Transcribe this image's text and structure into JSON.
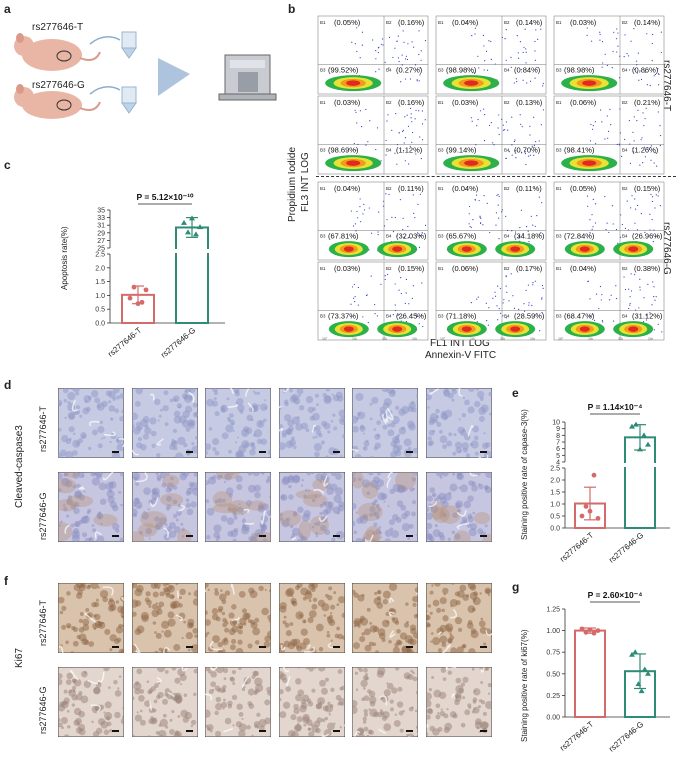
{
  "panels": {
    "a": "a",
    "b": "b",
    "c": "c",
    "d": "d",
    "e": "e",
    "f": "f",
    "g": "g"
  },
  "panel_a": {
    "mouse_top": "rs277646-T",
    "mouse_bottom": "rs277646-G"
  },
  "panel_b": {
    "y_axis_label_1": "Propidium Iodide",
    "y_axis_label_2": "FL3 INT LOG",
    "x_axis_label_1": "FL1 INT LOG",
    "x_axis_label_2": "Annexin-V FITC",
    "group_top": "rs277646-T",
    "group_bottom": "rs277646-G",
    "quadrant_names": [
      "B1",
      "B2",
      "B3",
      "B4"
    ],
    "tick_labels": [
      "10°",
      "10¹",
      "10²",
      "10³"
    ],
    "plots": [
      {
        "b1": "(0.05%)",
        "b2": "(0.16%)",
        "b3": "(99.52%)",
        "b4": "(0.27%)"
      },
      {
        "b1": "(0.04%)",
        "b2": "(0.14%)",
        "b3": "(98.98%)",
        "b4": "(0.84%)"
      },
      {
        "b1": "(0.03%)",
        "b2": "(0.14%)",
        "b3": "(98.98%)",
        "b4": "(0.86%)"
      },
      {
        "b1": "(0.03%)",
        "b2": "(0.16%)",
        "b3": "(98.69%)",
        "b4": "(1.12%)"
      },
      {
        "b1": "(0.03%)",
        "b2": "(0.13%)",
        "b3": "(99.14%)",
        "b4": "(0.70%)"
      },
      {
        "b1": "(0.06%)",
        "b2": "(0.21%)",
        "b3": "(98.41%)",
        "b4": "(1.26%)"
      },
      {
        "b1": "(0.04%)",
        "b2": "(0.11%)",
        "b3": "(67.81%)",
        "b4": "(32.03%)"
      },
      {
        "b1": "(0.04%)",
        "b2": "(0.11%)",
        "b3": "(65.67%)",
        "b4": "(34.18%)"
      },
      {
        "b1": "(0.05%)",
        "b2": "(0.15%)",
        "b3": "(72.84%)",
        "b4": "(26.96%)"
      },
      {
        "b1": "(0.03%)",
        "b2": "(0.15%)",
        "b3": "(73.37%)",
        "b4": "(26.45%)"
      },
      {
        "b1": "(0.06%)",
        "b2": "(0.17%)",
        "b3": "(71.18%)",
        "b4": "(28.59%)"
      },
      {
        "b1": "(0.04%)",
        "b2": "(0.38%)",
        "b3": "(68.47%)",
        "b4": "(31.12%)"
      }
    ]
  },
  "panel_d": {
    "title": "Cleaved-caspase3",
    "row_top": "rs277646-T",
    "row_bottom": "rs277646-G"
  },
  "panel_f": {
    "title": "Ki67",
    "row_top": "rs277646-T",
    "row_bottom": "rs277646-G"
  },
  "colors": {
    "T": "#d46a6a",
    "G": "#2e8b77",
    "ihc_blue": "#b9bfdc",
    "ihc_brown": "#a98361"
  },
  "chart_data": [
    {
      "id": "c",
      "type": "bar",
      "ylabel": "Apoptosis rate(%)",
      "categories": [
        "rs277646-T",
        "rs277646-G"
      ],
      "pvalue": "P = 5.12×10⁻¹⁰",
      "broken_axis": true,
      "lower_ticks": [
        "0.0",
        "0.5",
        "1.0",
        "1.5",
        "2.0",
        "2.5"
      ],
      "upper_ticks": [
        "25",
        "27",
        "29",
        "31",
        "33",
        "35"
      ],
      "means": [
        1.02,
        30.4
      ],
      "sd": [
        0.32,
        2.6
      ],
      "points": [
        [
          0.9,
          1.3,
          0.7,
          0.75,
          1.2
        ],
        [
          31.6,
          29.1,
          32.8,
          28.6,
          30.5
        ]
      ]
    },
    {
      "id": "e",
      "type": "bar",
      "ylabel": "Staining positive rate of capase-3(%)",
      "categories": [
        "rs277646-T",
        "rs277646-G"
      ],
      "pvalue": "P = 1.14×10⁻⁴",
      "broken_axis": true,
      "lower_ticks": [
        "0.0",
        "0.5",
        "1.0",
        "1.5",
        "2.0",
        "2.5"
      ],
      "upper_ticks": [
        "4",
        "5",
        "6",
        "7",
        "8",
        "9",
        "10"
      ],
      "means": [
        1.02,
        7.7
      ],
      "sd": [
        0.68,
        1.9
      ],
      "points": [
        [
          0.5,
          0.9,
          0.7,
          2.2,
          0.4
        ],
        [
          9.3,
          9.6,
          5.9,
          8.0,
          6.6
        ]
      ]
    },
    {
      "id": "g",
      "type": "bar",
      "ylabel": "Staining positive rate of ki67(%)",
      "categories": [
        "rs277646-T",
        "rs277646-G"
      ],
      "pvalue": "P = 2.60×10⁻⁴",
      "broken_axis": false,
      "ticks": [
        "0.00",
        "0.25",
        "0.50",
        "0.75",
        "1.00",
        "1.25"
      ],
      "ylim": [
        0,
        1.25
      ],
      "means": [
        1.0,
        0.53
      ],
      "sd": [
        0.03,
        0.2
      ],
      "points": [
        [
          1.02,
          0.98,
          1.01,
          0.97,
          1.0
        ],
        [
          0.72,
          0.75,
          0.38,
          0.3,
          0.55,
          0.5
        ]
      ]
    }
  ]
}
